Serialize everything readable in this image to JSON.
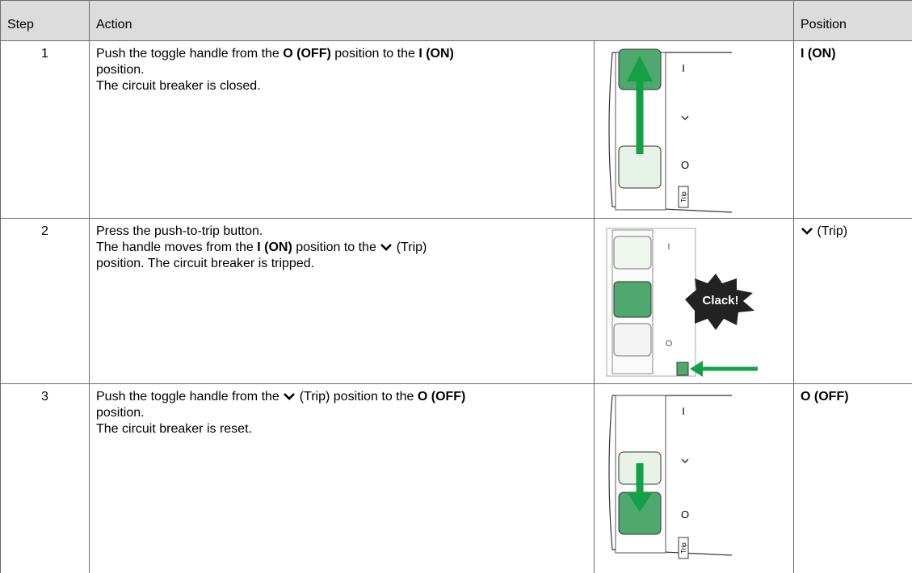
{
  "header": {
    "step": "Step",
    "action": "Action",
    "position": "Position"
  },
  "rows": [
    {
      "step": "1",
      "action": [
        [
          {
            "text": "Push the toggle handle from the ",
            "bold": false
          },
          {
            "text": "O (OFF)",
            "bold": true
          },
          {
            "text": " position to the ",
            "bold": false
          },
          {
            "text": "I (ON)",
            "bold": true
          }
        ],
        [
          {
            "text": "position.",
            "bold": false
          }
        ],
        [
          {
            "text": "The circuit breaker is closed.",
            "bold": false
          }
        ]
      ],
      "position": [
        {
          "text": "I (ON)",
          "bold": true
        }
      ],
      "image": {
        "on_mark": "I",
        "off_mark": "O",
        "trip_label": "Trip"
      }
    },
    {
      "step": "2",
      "action": [
        [
          {
            "text": "Press the push-to-trip button.",
            "bold": false
          }
        ],
        [
          {
            "text": "The handle moves from the ",
            "bold": false
          },
          {
            "text": "I (ON)",
            "bold": true
          },
          {
            "text": " position to the ",
            "bold": false
          },
          {
            "icon": "chevron"
          },
          {
            "text": " (Trip)",
            "bold": false
          }
        ],
        [
          {
            "text": "position. The circuit breaker is tripped.",
            "bold": false
          }
        ]
      ],
      "position": [
        {
          "icon": "chevron"
        },
        {
          "text": " (Trip)",
          "bold": false
        }
      ],
      "image": {
        "on_mark": "I",
        "off_mark": "O",
        "sound": "Clack!"
      }
    },
    {
      "step": "3",
      "action": [
        [
          {
            "text": "Push the toggle handle from the ",
            "bold": false
          },
          {
            "icon": "chevron"
          },
          {
            "text": " (Trip) position to the ",
            "bold": false
          },
          {
            "text": "O (OFF)",
            "bold": true
          }
        ],
        [
          {
            "text": "position.",
            "bold": false
          }
        ],
        [
          {
            "text": "The circuit breaker is reset.",
            "bold": false
          }
        ]
      ],
      "position": [
        {
          "text": "O (OFF)",
          "bold": true
        }
      ],
      "image": {
        "on_mark": "I",
        "off_mark": "O",
        "trip_label": "Trip"
      }
    }
  ]
}
